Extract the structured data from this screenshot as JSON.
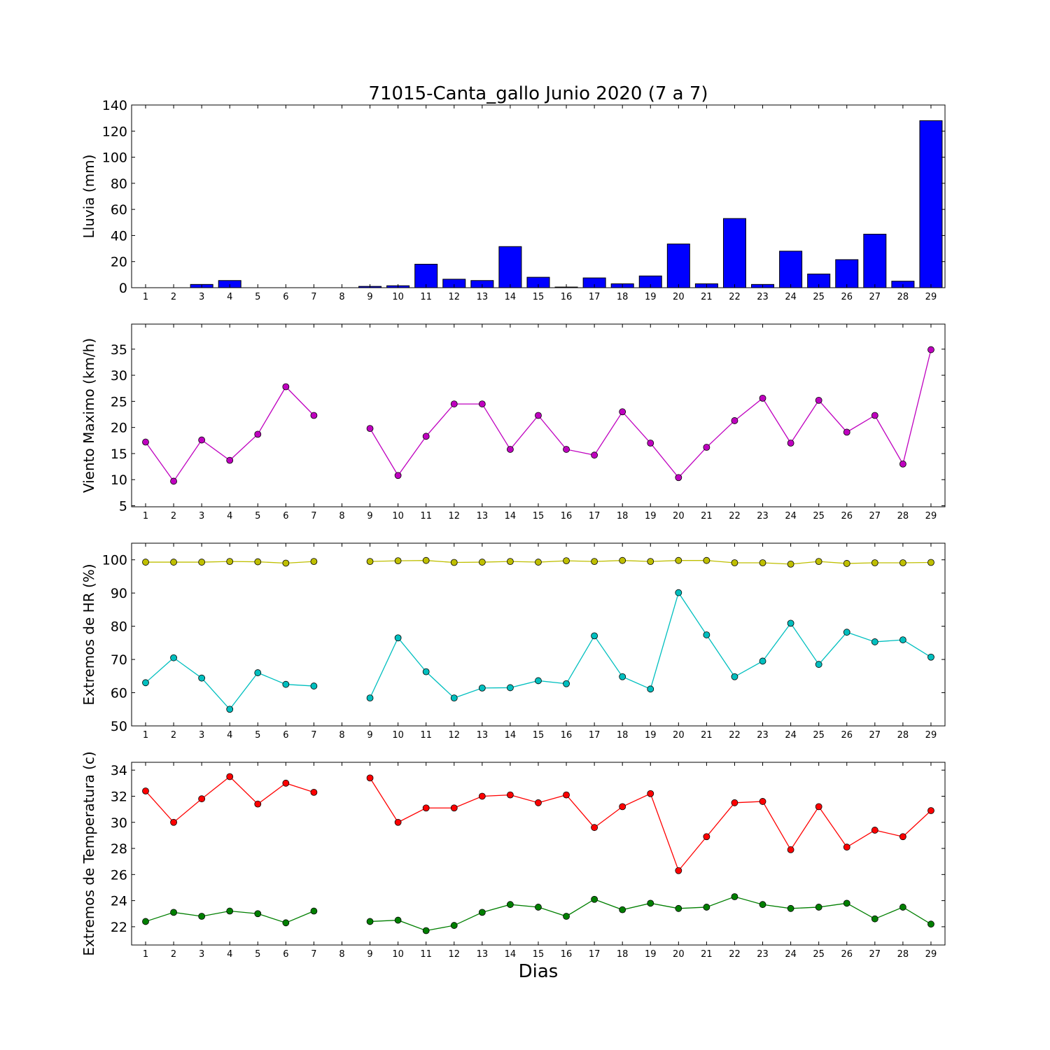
{
  "figure": {
    "title": "71015-Canta_gallo Junio 2020  (7 a 7)",
    "xlabel": "Dias"
  },
  "chart_data": [
    {
      "type": "bar",
      "ylabel": "Lluvia (mm)",
      "categories": [
        "1",
        "2",
        "3",
        "4",
        "5",
        "6",
        "7",
        "8",
        "9",
        "10",
        "11",
        "12",
        "13",
        "14",
        "15",
        "16",
        "17",
        "18",
        "19",
        "20",
        "21",
        "22",
        "23",
        "24",
        "25",
        "26",
        "27",
        "28",
        "29"
      ],
      "values": [
        0,
        0,
        2.5,
        5.5,
        0,
        0,
        0,
        0,
        1,
        1.5,
        18,
        6.5,
        5.5,
        31.5,
        8,
        0.5,
        7.5,
        3,
        9,
        33.5,
        3,
        53,
        2.5,
        28,
        10.5,
        21.5,
        41,
        5,
        128
      ],
      "ylim": [
        0,
        140
      ],
      "yticks": [
        0,
        20,
        40,
        60,
        80,
        100,
        120,
        140
      ],
      "colors": {
        "bar": "#0000ff"
      },
      "grid": false
    },
    {
      "type": "line",
      "ylabel": "Viento Maximo (km/h)",
      "categories": [
        "1",
        "2",
        "3",
        "4",
        "5",
        "6",
        "7",
        "8",
        "9",
        "10",
        "11",
        "12",
        "13",
        "14",
        "15",
        "16",
        "17",
        "18",
        "19",
        "20",
        "21",
        "22",
        "23",
        "24",
        "25",
        "26",
        "27",
        "28",
        "29"
      ],
      "series": [
        {
          "color": "#bf00bf",
          "values": [
            17.2,
            9.7,
            17.6,
            13.7,
            18.7,
            27.8,
            22.3,
            null,
            19.8,
            10.8,
            18.3,
            24.5,
            24.5,
            15.8,
            22.3,
            15.8,
            14.7,
            23.0,
            17.0,
            10.4,
            16.2,
            21.3,
            25.6,
            17.0,
            25.2,
            19.1,
            22.3,
            13.0,
            34.9
          ]
        }
      ],
      "ylim": [
        4.8,
        39.8
      ],
      "yticks": [
        5,
        10,
        15,
        20,
        25,
        30,
        35
      ],
      "grid": false
    },
    {
      "type": "line",
      "ylabel": "Extremos de HR (%)",
      "categories": [
        "1",
        "2",
        "3",
        "4",
        "5",
        "6",
        "7",
        "8",
        "9",
        "10",
        "11",
        "12",
        "13",
        "14",
        "15",
        "16",
        "17",
        "18",
        "19",
        "20",
        "21",
        "22",
        "23",
        "24",
        "25",
        "26",
        "27",
        "28",
        "29"
      ],
      "series": [
        {
          "color": "#bfbf00",
          "values": [
            99.3,
            99.3,
            99.3,
            99.5,
            99.4,
            99.0,
            99.5,
            null,
            99.5,
            99.7,
            99.8,
            99.2,
            99.3,
            99.5,
            99.3,
            99.7,
            99.5,
            99.8,
            99.5,
            99.8,
            99.8,
            99.1,
            99.1,
            98.7,
            99.5,
            98.9,
            99.1,
            99.1,
            99.2
          ]
        },
        {
          "color": "#00bfbf",
          "values": [
            63.0,
            70.5,
            64.4,
            55.0,
            66.0,
            62.5,
            62.0,
            null,
            58.4,
            76.5,
            66.3,
            58.4,
            61.4,
            61.5,
            63.6,
            62.7,
            77.1,
            64.8,
            61.1,
            90.1,
            77.4,
            64.8,
            69.5,
            80.9,
            68.5,
            78.2,
            75.3,
            75.9,
            70.7
          ]
        }
      ],
      "ylim": [
        50,
        105
      ],
      "yticks": [
        50,
        60,
        70,
        80,
        90,
        100
      ],
      "grid": false
    },
    {
      "type": "line",
      "ylabel": "Extremos de Temperatura (c)",
      "categories": [
        "1",
        "2",
        "3",
        "4",
        "5",
        "6",
        "7",
        "8",
        "9",
        "10",
        "11",
        "12",
        "13",
        "14",
        "15",
        "16",
        "17",
        "18",
        "19",
        "20",
        "21",
        "22",
        "23",
        "24",
        "25",
        "26",
        "27",
        "28",
        "29"
      ],
      "series": [
        {
          "color": "#ff0000",
          "values": [
            32.4,
            30.0,
            31.8,
            33.5,
            31.4,
            33.0,
            32.3,
            null,
            33.4,
            30.0,
            31.1,
            31.1,
            32.0,
            32.1,
            31.5,
            32.1,
            29.6,
            31.2,
            32.2,
            26.3,
            28.9,
            31.5,
            31.6,
            27.9,
            31.2,
            28.1,
            29.4,
            28.9,
            30.9
          ]
        },
        {
          "color": "#007f00",
          "values": [
            22.4,
            23.1,
            22.8,
            23.2,
            23.0,
            22.3,
            23.2,
            null,
            22.4,
            22.5,
            21.7,
            22.1,
            23.1,
            23.7,
            23.5,
            22.8,
            24.1,
            23.3,
            23.8,
            23.4,
            23.5,
            24.3,
            23.7,
            23.4,
            23.5,
            23.8,
            22.6,
            23.5,
            22.2
          ]
        }
      ],
      "ylim": [
        20.6,
        34.6
      ],
      "yticks": [
        22,
        24,
        26,
        28,
        30,
        32,
        34
      ],
      "grid": false
    }
  ]
}
